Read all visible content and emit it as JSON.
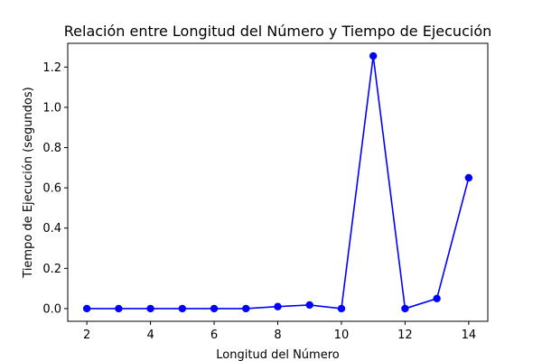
{
  "chart_data": {
    "type": "line",
    "title": "Relación entre Longitud del Número y Tiempo de Ejecución",
    "xlabel": "Longitud del Número",
    "ylabel": "Tiempo de Ejecución (segundos)",
    "x": [
      2,
      3,
      4,
      5,
      6,
      7,
      8,
      9,
      10,
      11,
      12,
      13,
      14
    ],
    "series": [
      {
        "values": [
          0.0,
          0.0,
          0.0,
          0.0,
          0.0,
          0.0,
          0.01,
          0.018,
          0.0,
          1.255,
          0.0,
          0.05,
          0.65
        ],
        "color": "#0000ff",
        "marker": "circle"
      }
    ],
    "xlim": [
      1.4,
      14.6
    ],
    "ylim": [
      -0.063,
      1.318
    ],
    "xticks": [
      2,
      4,
      6,
      8,
      10,
      12,
      14
    ],
    "yticks": [
      0.0,
      0.2,
      0.4,
      0.6,
      0.8,
      1.0,
      1.2
    ],
    "xtick_labels": [
      "2",
      "4",
      "6",
      "8",
      "10",
      "12",
      "14"
    ],
    "ytick_labels": [
      "0.0",
      "0.2",
      "0.4",
      "0.6",
      "0.8",
      "1.0",
      "1.2"
    ],
    "grid": false,
    "legend": "none"
  }
}
